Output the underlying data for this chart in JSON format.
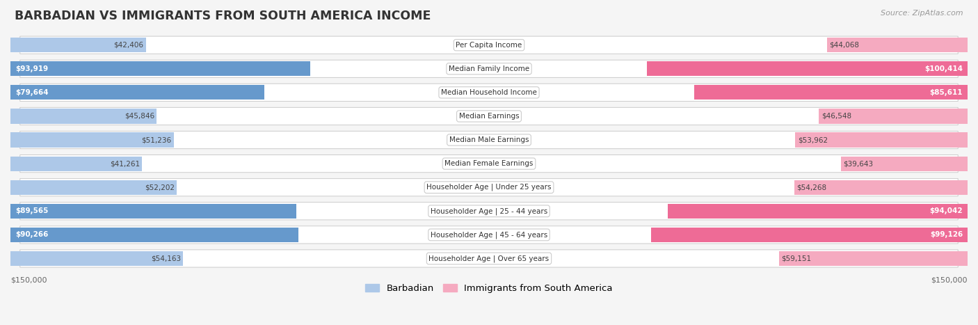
{
  "title": "BARBADIAN VS IMMIGRANTS FROM SOUTH AMERICA INCOME",
  "source": "Source: ZipAtlas.com",
  "categories": [
    "Per Capita Income",
    "Median Family Income",
    "Median Household Income",
    "Median Earnings",
    "Median Male Earnings",
    "Median Female Earnings",
    "Householder Age | Under 25 years",
    "Householder Age | 25 - 44 years",
    "Householder Age | 45 - 64 years",
    "Householder Age | Over 65 years"
  ],
  "barbadian_values": [
    42406,
    93919,
    79664,
    45846,
    51236,
    41261,
    52202,
    89565,
    90266,
    54163
  ],
  "immigrant_values": [
    44068,
    100414,
    85611,
    46548,
    53962,
    39643,
    54268,
    94042,
    99126,
    59151
  ],
  "barbadian_labels": [
    "$42,406",
    "$93,919",
    "$79,664",
    "$45,846",
    "$51,236",
    "$41,261",
    "$52,202",
    "$89,565",
    "$90,266",
    "$54,163"
  ],
  "immigrant_labels": [
    "$44,068",
    "$100,414",
    "$85,611",
    "$46,548",
    "$53,962",
    "$39,643",
    "$54,268",
    "$94,042",
    "$99,126",
    "$59,151"
  ],
  "barbadian_color_light": "#adc8e8",
  "barbadian_color_dark": "#6699cc",
  "immigrant_color_light": "#f5aac0",
  "immigrant_color_dark": "#ee6b96",
  "max_value": 150000,
  "background_color": "#f5f5f5",
  "legend_barbadian": "Barbadian",
  "legend_immigrant": "Immigrants from South America",
  "axis_label_left": "$150,000",
  "axis_label_right": "$150,000",
  "dark_threshold_barb": 79000,
  "dark_threshold_immig": 85000
}
